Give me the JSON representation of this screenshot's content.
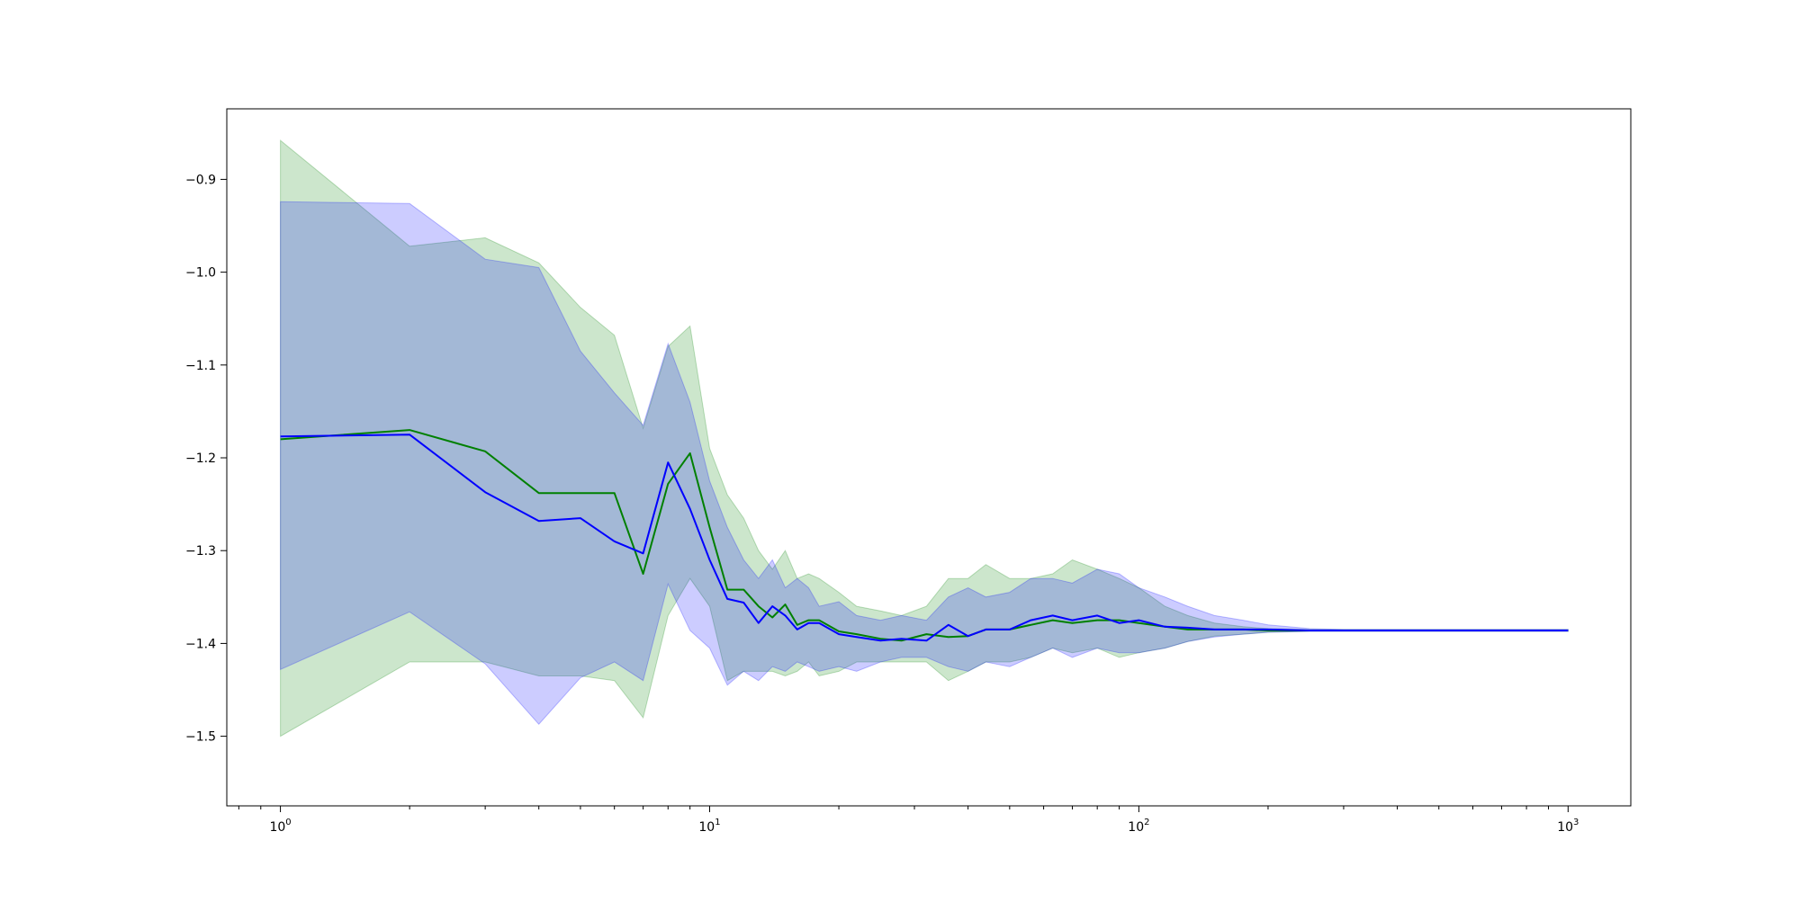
{
  "chart_data": {
    "type": "line",
    "title": "",
    "xlabel": "",
    "ylabel": "",
    "xscale": "log",
    "xlim": [
      0.75,
      1400
    ],
    "ylim": [
      -1.575,
      -0.824
    ],
    "grid": false,
    "legend": "none",
    "x_ticks": [
      {
        "value": 1,
        "base": "10",
        "exp": "0"
      },
      {
        "value": 10,
        "base": "10",
        "exp": "1"
      },
      {
        "value": 100,
        "base": "10",
        "exp": "2"
      },
      {
        "value": 1000,
        "base": "10",
        "exp": "3"
      }
    ],
    "y_ticks": [
      {
        "value": -1.5,
        "label": "−1.5"
      },
      {
        "value": -1.4,
        "label": "−1.4"
      },
      {
        "value": -1.3,
        "label": "−1.3"
      },
      {
        "value": -1.2,
        "label": "−1.2"
      },
      {
        "value": -1.1,
        "label": "−1.1"
      },
      {
        "value": -1.0,
        "label": "−1.0"
      },
      {
        "value": -0.9,
        "label": "−0.9"
      }
    ],
    "series": [
      {
        "color": "#008000",
        "band_color": "#008000",
        "band_opacity": 0.2,
        "x": [
          1,
          2,
          3,
          4,
          5,
          6,
          7,
          8,
          9,
          10,
          11,
          12,
          13,
          14,
          15,
          16,
          17,
          18,
          20,
          22,
          25,
          28,
          32,
          36,
          40,
          44,
          50,
          56,
          63,
          70,
          80,
          90,
          100,
          115,
          130,
          150,
          175,
          200,
          250,
          300,
          350,
          400,
          500,
          600,
          700,
          800,
          900,
          1000
        ],
        "y": [
          -1.18,
          -1.17,
          -1.193,
          -1.238,
          -1.238,
          -1.238,
          -1.325,
          -1.228,
          -1.195,
          -1.275,
          -1.342,
          -1.342,
          -1.36,
          -1.372,
          -1.358,
          -1.38,
          -1.375,
          -1.375,
          -1.387,
          -1.39,
          -1.395,
          -1.397,
          -1.39,
          -1.393,
          -1.392,
          -1.385,
          -1.385,
          -1.38,
          -1.375,
          -1.378,
          -1.375,
          -1.375,
          -1.378,
          -1.382,
          -1.385,
          -1.385,
          -1.385,
          -1.386,
          -1.386,
          -1.386,
          -1.386,
          -1.386,
          -1.386,
          -1.386,
          -1.386,
          -1.386,
          -1.386,
          -1.386
        ],
        "upper": [
          -0.858,
          -0.972,
          -0.963,
          -0.99,
          -1.038,
          -1.068,
          -1.168,
          -1.08,
          -1.058,
          -1.19,
          -1.24,
          -1.265,
          -1.3,
          -1.32,
          -1.3,
          -1.33,
          -1.325,
          -1.33,
          -1.345,
          -1.36,
          -1.365,
          -1.37,
          -1.36,
          -1.33,
          -1.33,
          -1.315,
          -1.33,
          -1.33,
          -1.325,
          -1.31,
          -1.32,
          -1.33,
          -1.34,
          -1.36,
          -1.37,
          -1.378,
          -1.382,
          -1.384,
          -1.385,
          -1.385,
          -1.385,
          -1.385,
          -1.385,
          -1.385,
          -1.385,
          -1.385,
          -1.385,
          -1.385
        ],
        "lower": [
          -1.5,
          -1.42,
          -1.42,
          -1.435,
          -1.435,
          -1.44,
          -1.48,
          -1.37,
          -1.33,
          -1.36,
          -1.44,
          -1.43,
          -1.43,
          -1.43,
          -1.435,
          -1.43,
          -1.42,
          -1.435,
          -1.43,
          -1.42,
          -1.42,
          -1.42,
          -1.42,
          -1.44,
          -1.43,
          -1.42,
          -1.42,
          -1.415,
          -1.405,
          -1.41,
          -1.405,
          -1.415,
          -1.41,
          -1.405,
          -1.398,
          -1.392,
          -1.39,
          -1.388,
          -1.387,
          -1.387,
          -1.387,
          -1.387,
          -1.387,
          -1.387,
          -1.387,
          -1.387,
          -1.387,
          -1.387
        ]
      },
      {
        "color": "#0000ff",
        "band_color": "#0000ff",
        "band_opacity": 0.2,
        "x": [
          1,
          2,
          3,
          4,
          5,
          6,
          7,
          8,
          9,
          10,
          11,
          12,
          13,
          14,
          15,
          16,
          17,
          18,
          20,
          22,
          25,
          28,
          32,
          36,
          40,
          44,
          50,
          56,
          63,
          70,
          80,
          90,
          100,
          115,
          130,
          150,
          175,
          200,
          250,
          300,
          350,
          400,
          500,
          600,
          700,
          800,
          900,
          1000
        ],
        "y": [
          -1.177,
          -1.175,
          -1.237,
          -1.268,
          -1.265,
          -1.29,
          -1.303,
          -1.205,
          -1.255,
          -1.31,
          -1.352,
          -1.356,
          -1.378,
          -1.36,
          -1.37,
          -1.385,
          -1.378,
          -1.378,
          -1.39,
          -1.393,
          -1.397,
          -1.395,
          -1.397,
          -1.38,
          -1.392,
          -1.385,
          -1.385,
          -1.375,
          -1.37,
          -1.375,
          -1.37,
          -1.378,
          -1.375,
          -1.382,
          -1.383,
          -1.385,
          -1.385,
          -1.385,
          -1.386,
          -1.386,
          -1.386,
          -1.386,
          -1.386,
          -1.386,
          -1.386,
          -1.386,
          -1.386,
          -1.386
        ],
        "upper": [
          -0.924,
          -0.926,
          -0.986,
          -0.995,
          -1.085,
          -1.13,
          -1.165,
          -1.077,
          -1.14,
          -1.225,
          -1.275,
          -1.31,
          -1.33,
          -1.31,
          -1.34,
          -1.33,
          -1.34,
          -1.36,
          -1.355,
          -1.37,
          -1.375,
          -1.37,
          -1.375,
          -1.35,
          -1.34,
          -1.35,
          -1.345,
          -1.33,
          -1.33,
          -1.335,
          -1.32,
          -1.325,
          -1.34,
          -1.35,
          -1.36,
          -1.37,
          -1.375,
          -1.38,
          -1.384,
          -1.385,
          -1.385,
          -1.385,
          -1.385,
          -1.385,
          -1.385,
          -1.385,
          -1.385,
          -1.385
        ],
        "lower": [
          -1.428,
          -1.366,
          -1.422,
          -1.487,
          -1.437,
          -1.42,
          -1.44,
          -1.336,
          -1.386,
          -1.405,
          -1.445,
          -1.43,
          -1.44,
          -1.425,
          -1.43,
          -1.42,
          -1.425,
          -1.43,
          -1.425,
          -1.43,
          -1.42,
          -1.415,
          -1.415,
          -1.425,
          -1.43,
          -1.42,
          -1.425,
          -1.415,
          -1.405,
          -1.415,
          -1.405,
          -1.41,
          -1.41,
          -1.405,
          -1.398,
          -1.393,
          -1.39,
          -1.388,
          -1.387,
          -1.387,
          -1.387,
          -1.387,
          -1.387,
          -1.387,
          -1.387,
          -1.387,
          -1.387,
          -1.387
        ]
      }
    ]
  }
}
